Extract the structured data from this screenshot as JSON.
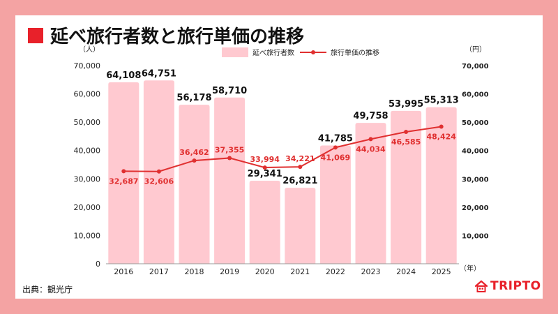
{
  "title": "延べ旅行者数と旅行単価の推移",
  "source": "出典：観光庁",
  "logo": {
    "text": "TRIPTO",
    "icon": "house-icon",
    "color": "#e8212a"
  },
  "chart_data": {
    "type": "bar",
    "categories": [
      "2016",
      "2017",
      "2018",
      "2019",
      "2020",
      "2021",
      "2022",
      "2023",
      "2024",
      "2025"
    ],
    "series": [
      {
        "name": "延べ旅行者数",
        "type": "bar",
        "axis": "left",
        "color": "#ffc9d0",
        "values": [
          64108,
          64751,
          56178,
          58710,
          29341,
          26821,
          41785,
          49758,
          53995,
          55313
        ],
        "labels": [
          "64,108",
          "64,751",
          "56,178",
          "58,710",
          "29,341",
          "26,821",
          "41,785",
          "49,758",
          "53,995",
          "55,313"
        ]
      },
      {
        "name": "旅行単価の推移",
        "type": "line",
        "axis": "right",
        "color": "#e03030",
        "values": [
          32687,
          32606,
          36462,
          37355,
          33994,
          34221,
          41069,
          44034,
          46585,
          48424
        ],
        "labels": [
          "32,687",
          "32,606",
          "36,462",
          "37,355",
          "33,994",
          "34,221",
          "41,069",
          "44,034",
          "46,585",
          "48,424"
        ]
      }
    ],
    "y_left": {
      "unit": "（人）",
      "ylim": [
        0,
        70000
      ],
      "ticks": [
        "0",
        "10,000",
        "20,000",
        "30,000",
        "40,000",
        "50,000",
        "60,000",
        "70,000"
      ]
    },
    "y_right": {
      "unit": "（円）",
      "ylim": [
        0,
        70000
      ],
      "ticks": [
        "",
        "10,000",
        "20,000",
        "30,000",
        "40,000",
        "50,000",
        "60,000",
        "70,000"
      ]
    },
    "x_unit": "（年）",
    "legend_position": "top-center",
    "grid": false
  }
}
